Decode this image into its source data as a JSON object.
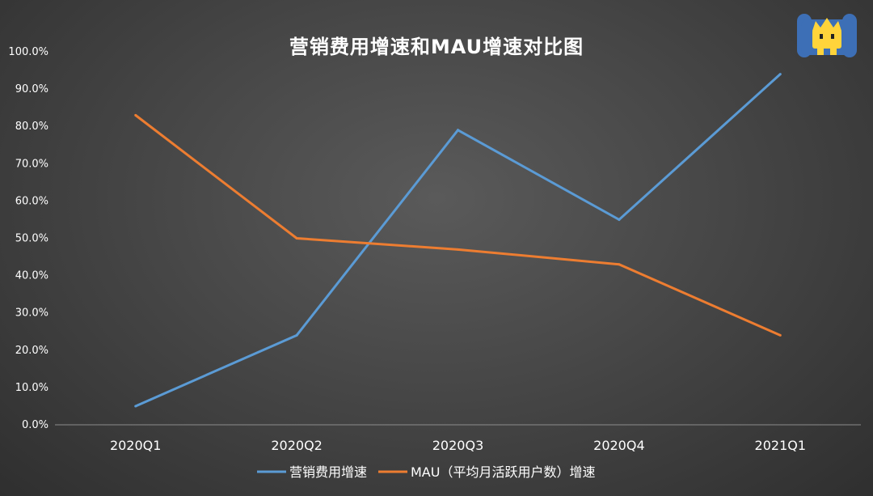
{
  "chart_data": {
    "type": "line",
    "title": "营销费用增速和MAU增速对比图",
    "categories": [
      "2020Q1",
      "2020Q2",
      "2020Q3",
      "2020Q4",
      "2021Q1"
    ],
    "y_tick_labels": [
      "0.0%",
      "10.0%",
      "20.0%",
      "30.0%",
      "40.0%",
      "50.0%",
      "60.0%",
      "70.0%",
      "80.0%",
      "90.0%",
      "100.0%"
    ],
    "ylim": [
      0,
      100
    ],
    "y_unit": "%",
    "grid": false,
    "legend_position": "bottom",
    "series": [
      {
        "name": "营销费用增速",
        "color": "#5b9bd5",
        "values": [
          5,
          24,
          79,
          55,
          94
        ]
      },
      {
        "name": "MAU（平均月活跃用户数）增速",
        "color": "#ed7d31",
        "values": [
          83,
          50,
          47,
          43,
          24
        ]
      }
    ]
  },
  "colors": {
    "axis": "#8c8c8c",
    "text": "#ffffff"
  },
  "logo": {
    "name": "mascot-logo"
  }
}
